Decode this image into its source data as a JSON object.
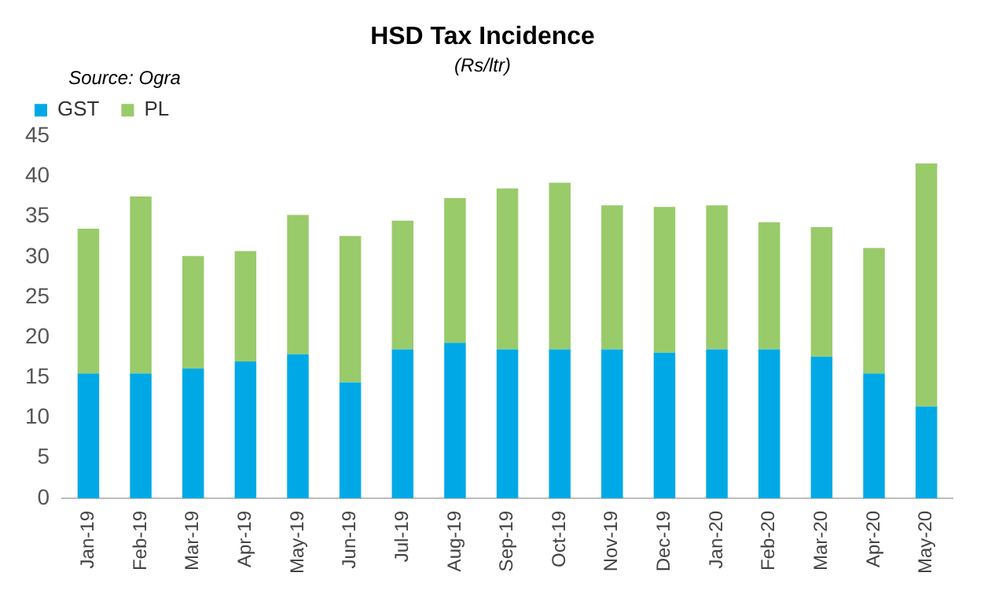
{
  "chart_data": {
    "type": "bar",
    "title": "HSD Tax Incidence",
    "subtitle": "(Rs/ltr)",
    "annotations": [
      "Source: Ogra"
    ],
    "categories": [
      "Jan-19",
      "Feb-19",
      "Mar-19",
      "Apr-19",
      "May-19",
      "Jun-19",
      "Jul-19",
      "Aug-19",
      "Sep-19",
      "Oct-19",
      "Nov-19",
      "Dec-19",
      "Jan-20",
      "Feb-20",
      "Mar-20",
      "Apr-20",
      "May-20"
    ],
    "series": [
      {
        "name": "GST",
        "color": "#00a9e6",
        "values": [
          15.5,
          15.5,
          16.1,
          17.0,
          17.9,
          14.4,
          18.5,
          19.3,
          18.5,
          18.5,
          18.5,
          18.1,
          18.5,
          18.5,
          17.6,
          15.5,
          11.4
        ]
      },
      {
        "name": "PL",
        "color": "#99cb6a",
        "values": [
          18.0,
          22.0,
          14.0,
          13.7,
          17.3,
          18.2,
          16.0,
          18.0,
          20.0,
          20.7,
          17.9,
          18.1,
          17.9,
          15.8,
          16.1,
          15.6,
          30.2
        ]
      }
    ],
    "stacked": true,
    "ylim": [
      0,
      45
    ],
    "yticks": [
      0,
      5,
      10,
      15,
      20,
      25,
      30,
      35,
      40,
      45
    ],
    "grid": false,
    "legend": "top left"
  }
}
